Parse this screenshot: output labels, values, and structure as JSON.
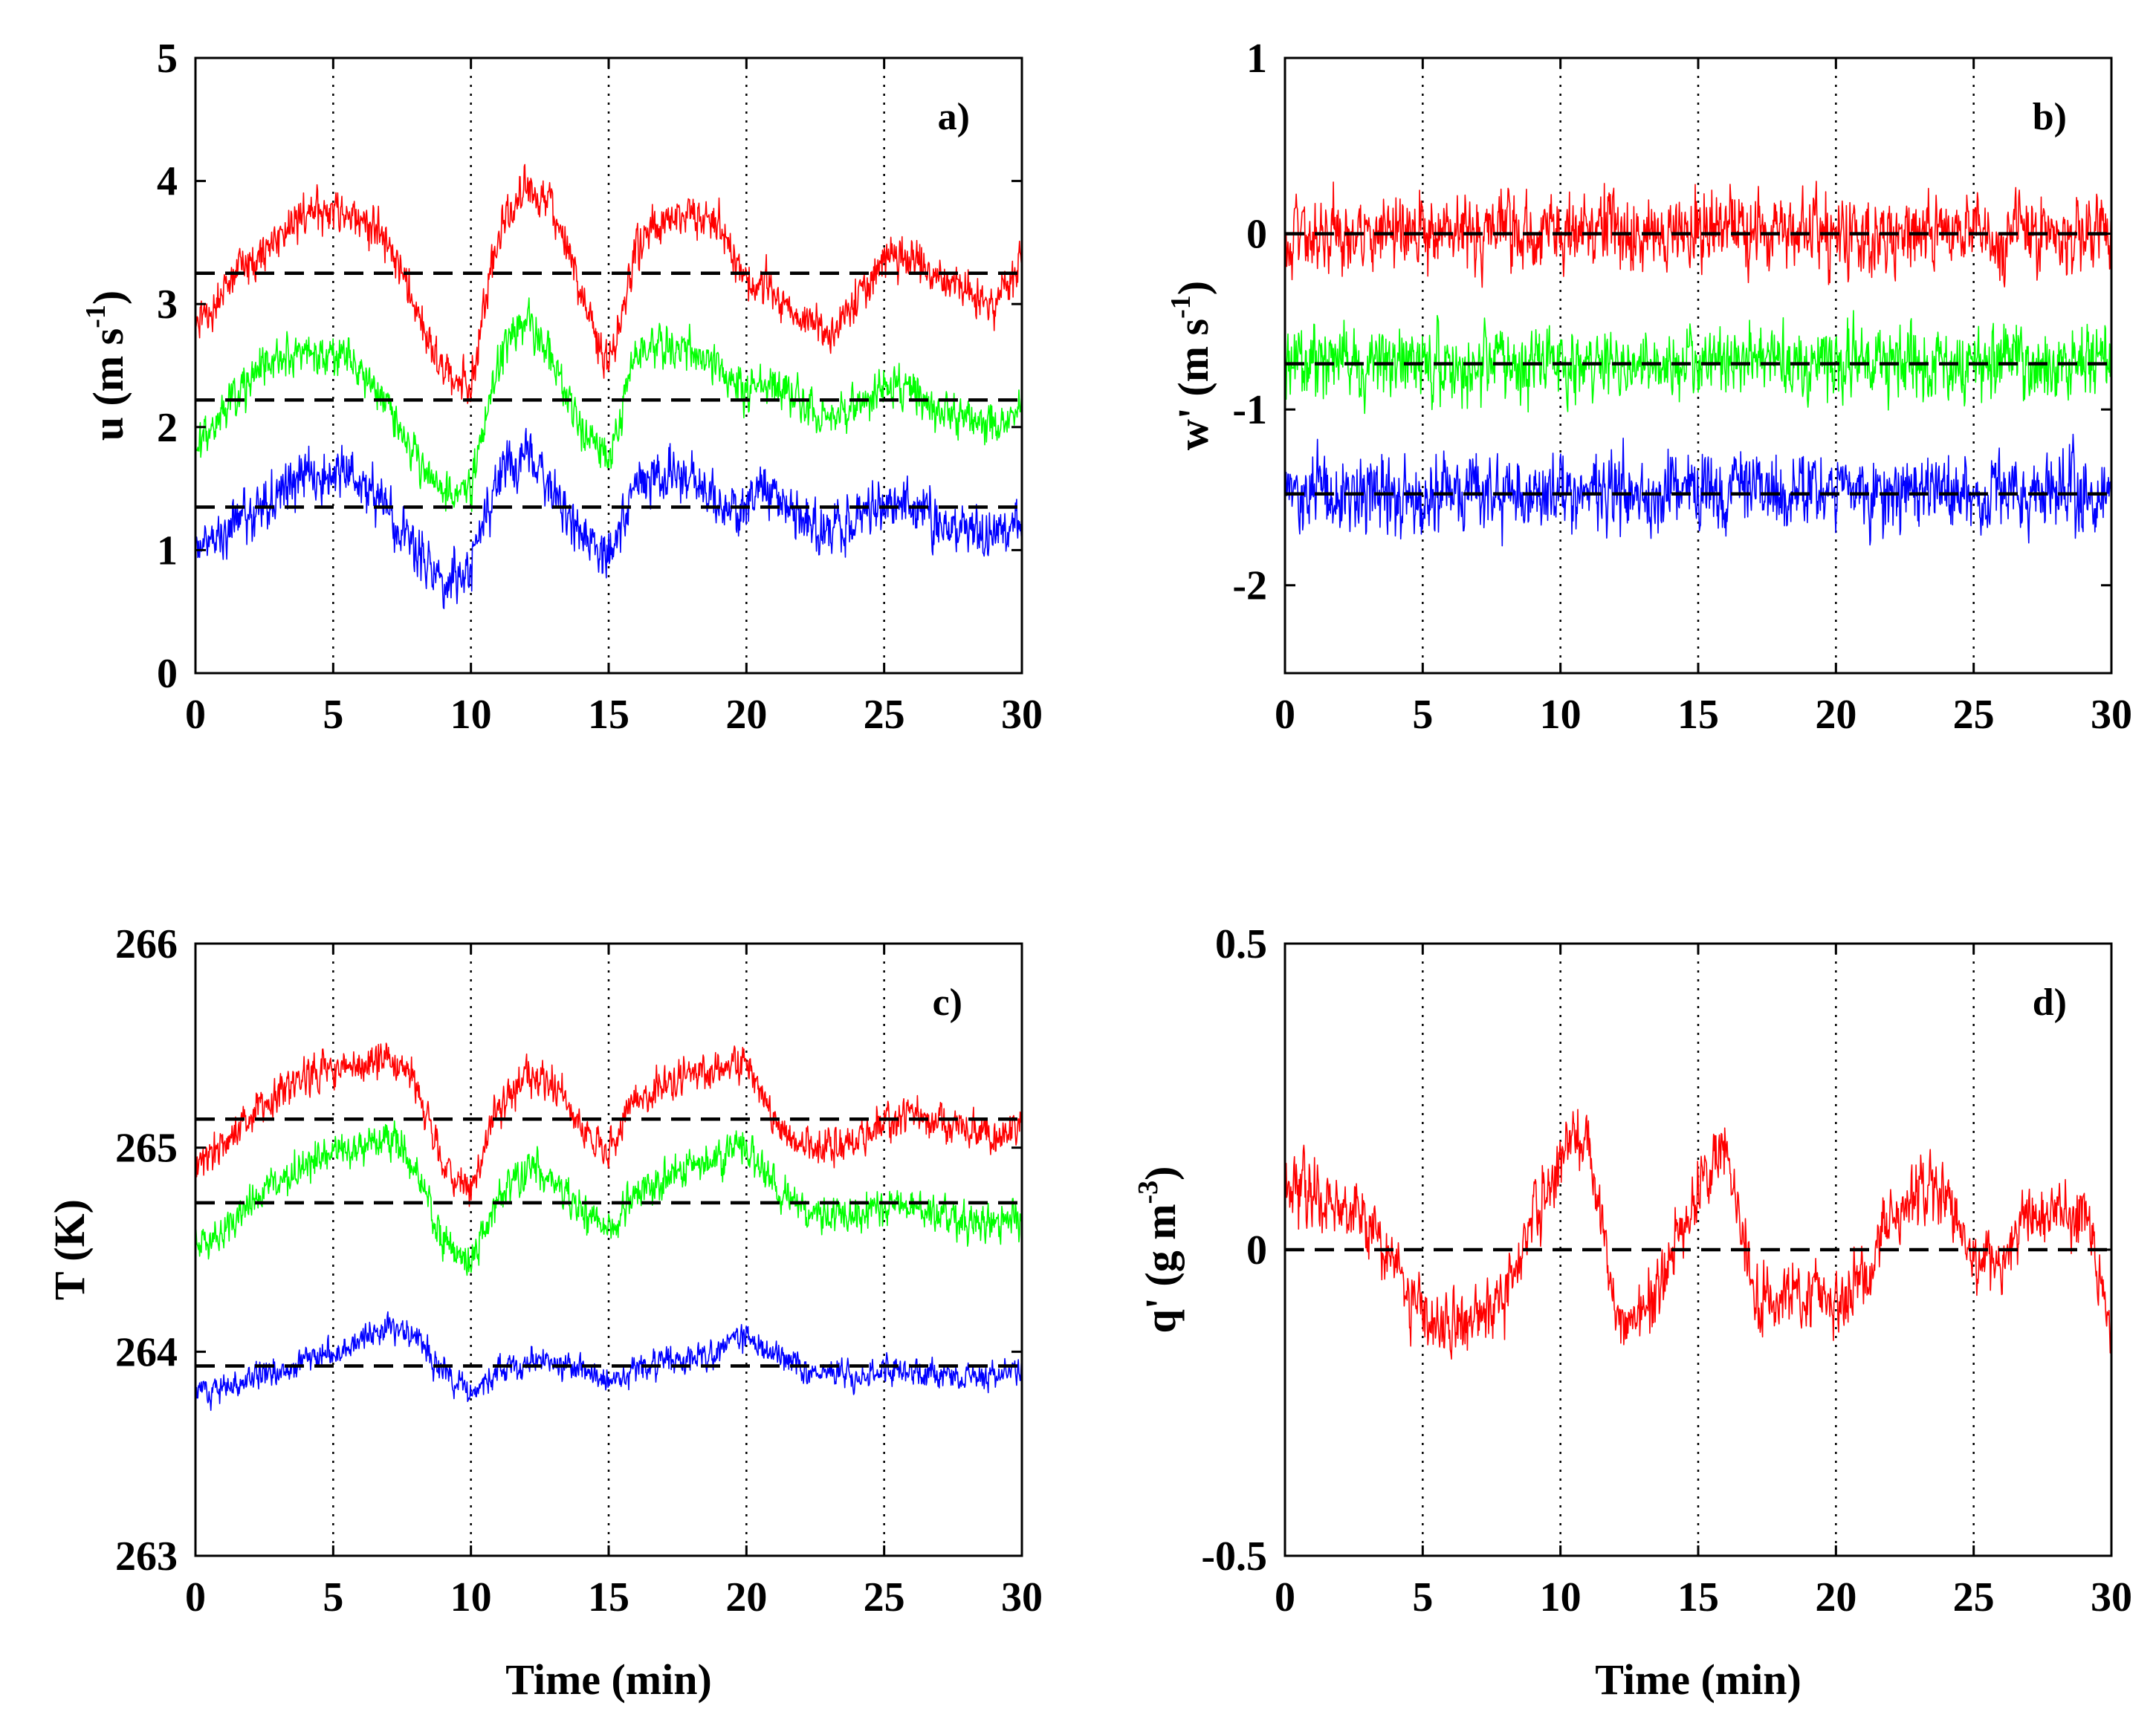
{
  "chart_data": [
    {
      "type": "line",
      "panel_label": "a)",
      "title": "",
      "xlabel": "",
      "ylabel": "u (m s",
      "ylabel_sup": "-1",
      "ylabel_end": ")",
      "xlim": [
        0,
        30
      ],
      "ylim": [
        0,
        5
      ],
      "xticks": [
        "0",
        "5",
        "10",
        "15",
        "20",
        "25",
        "30"
      ],
      "yticks": [
        "0",
        "1",
        "2",
        "3",
        "4",
        "5"
      ],
      "grid": "x-dotted",
      "mean_lines": [
        3.25,
        2.22,
        1.35
      ],
      "series": [
        {
          "name": "red",
          "color": "#ff0000",
          "noise": 0.13,
          "x": [
            0,
            1,
            2,
            3,
            4,
            5,
            6,
            7,
            8,
            9,
            10,
            11,
            12,
            13,
            14,
            15,
            16,
            17,
            18,
            19,
            20,
            21,
            22,
            23,
            24,
            25,
            26,
            27,
            28,
            29,
            30
          ],
          "values": [
            2.8,
            3.1,
            3.35,
            3.55,
            3.7,
            3.8,
            3.7,
            3.5,
            2.95,
            2.45,
            2.35,
            3.55,
            3.95,
            3.75,
            3.1,
            2.45,
            3.5,
            3.7,
            3.75,
            3.6,
            3.2,
            3.1,
            2.9,
            2.75,
            3.05,
            3.35,
            3.4,
            3.2,
            3.1,
            2.95,
            3.35
          ]
        },
        {
          "name": "green",
          "color": "#00ff00",
          "noise": 0.13,
          "x": [
            0,
            1,
            2,
            3,
            4,
            5,
            6,
            7,
            8,
            9,
            10,
            11,
            12,
            13,
            14,
            15,
            16,
            17,
            18,
            19,
            20,
            21,
            22,
            23,
            24,
            25,
            26,
            27,
            28,
            29,
            30
          ],
          "values": [
            1.85,
            2.15,
            2.4,
            2.55,
            2.6,
            2.6,
            2.45,
            2.2,
            1.75,
            1.45,
            1.5,
            2.55,
            2.9,
            2.5,
            2.0,
            1.75,
            2.6,
            2.65,
            2.6,
            2.45,
            2.3,
            2.35,
            2.2,
            2.05,
            2.15,
            2.35,
            2.3,
            2.1,
            2.1,
            2.0,
            2.15
          ]
        },
        {
          "name": "blue",
          "color": "#0000ff",
          "noise": 0.16,
          "x": [
            0,
            1,
            2,
            3,
            4,
            5,
            6,
            7,
            8,
            9,
            10,
            11,
            12,
            13,
            14,
            15,
            16,
            17,
            18,
            19,
            20,
            21,
            22,
            23,
            24,
            25,
            26,
            27,
            28,
            29,
            30
          ],
          "values": [
            1.0,
            1.15,
            1.3,
            1.5,
            1.65,
            1.65,
            1.55,
            1.35,
            1.0,
            0.75,
            0.85,
            1.6,
            1.8,
            1.5,
            1.1,
            0.9,
            1.55,
            1.6,
            1.55,
            1.4,
            1.35,
            1.5,
            1.25,
            1.15,
            1.25,
            1.4,
            1.3,
            1.2,
            1.15,
            1.1,
            1.3
          ]
        }
      ]
    },
    {
      "type": "line",
      "panel_label": "b)",
      "title": "",
      "xlabel": "",
      "ylabel": "w' (m s",
      "ylabel_sup": "-1",
      "ylabel_end": ")",
      "xlim": [
        0,
        30
      ],
      "ylim": [
        -2.5,
        1
      ],
      "xticks": [
        "0",
        "5",
        "10",
        "15",
        "20",
        "25",
        "30"
      ],
      "yticks": [
        "-2",
        "-1",
        "0",
        "1"
      ],
      "grid": "x-dotted",
      "mean_lines": [
        0.0,
        -0.74,
        -1.48
      ],
      "series": [
        {
          "name": "red",
          "color": "#ff0000",
          "noise": 0.16,
          "x": [
            0,
            5,
            10,
            15,
            20,
            25,
            30
          ],
          "values": [
            0.0,
            0.0,
            0.02,
            0.0,
            0.0,
            0.0,
            0.02
          ]
        },
        {
          "name": "green",
          "color": "#00ff00",
          "noise": 0.15,
          "x": [
            0,
            5,
            10,
            15,
            20,
            25,
            30
          ],
          "values": [
            -0.74,
            -0.74,
            -0.73,
            -0.74,
            -0.74,
            -0.74,
            -0.74
          ]
        },
        {
          "name": "blue",
          "color": "#0000ff",
          "noise": 0.16,
          "x": [
            0,
            5,
            10,
            15,
            20,
            25,
            30
          ],
          "values": [
            -1.48,
            -1.48,
            -1.47,
            -1.48,
            -1.48,
            -1.48,
            -1.48
          ]
        }
      ]
    },
    {
      "type": "line",
      "panel_label": "c)",
      "title": "",
      "xlabel": "Time (min)",
      "ylabel": "T (K)",
      "ylabel_sup": "",
      "ylabel_end": "",
      "xlim": [
        0,
        30
      ],
      "ylim": [
        263,
        266
      ],
      "xticks": [
        "0",
        "5",
        "10",
        "15",
        "20",
        "25",
        "30"
      ],
      "yticks": [
        "263",
        "264",
        "265",
        "266"
      ],
      "grid": "x-dotted",
      "mean_lines": [
        265.14,
        264.73,
        263.93
      ],
      "series": [
        {
          "name": "red",
          "color": "#ff0000",
          "noise": 0.07,
          "x": [
            0,
            1,
            2,
            3,
            4,
            5,
            6,
            7,
            8,
            9,
            10,
            11,
            12,
            13,
            14,
            15,
            16,
            17,
            18,
            19,
            20,
            21,
            22,
            23,
            24,
            25,
            26,
            27,
            28,
            29,
            30
          ],
          "values": [
            264.9,
            265.0,
            265.15,
            265.25,
            265.35,
            265.4,
            265.42,
            265.45,
            265.3,
            264.9,
            264.78,
            265.2,
            265.35,
            265.3,
            265.1,
            264.98,
            265.25,
            265.3,
            265.35,
            265.38,
            265.42,
            265.15,
            265.0,
            265.0,
            265.05,
            265.12,
            265.15,
            265.12,
            265.08,
            265.05,
            265.1
          ]
        },
        {
          "name": "green",
          "color": "#00ff00",
          "noise": 0.07,
          "x": [
            0,
            1,
            2,
            3,
            4,
            5,
            6,
            7,
            8,
            9,
            10,
            11,
            12,
            13,
            14,
            15,
            16,
            17,
            18,
            19,
            20,
            21,
            22,
            23,
            24,
            25,
            26,
            27,
            28,
            29,
            30
          ],
          "values": [
            264.5,
            264.6,
            264.72,
            264.82,
            264.9,
            264.98,
            265.0,
            265.05,
            264.9,
            264.55,
            264.45,
            264.75,
            264.9,
            264.85,
            264.7,
            264.58,
            264.78,
            264.85,
            264.9,
            264.95,
            265.0,
            264.8,
            264.68,
            264.65,
            264.68,
            264.72,
            264.7,
            264.68,
            264.65,
            264.62,
            264.65
          ]
        },
        {
          "name": "blue",
          "color": "#0000ff",
          "noise": 0.05,
          "x": [
            0,
            1,
            2,
            3,
            4,
            5,
            6,
            7,
            8,
            9,
            10,
            11,
            12,
            13,
            14,
            15,
            16,
            17,
            18,
            19,
            20,
            21,
            22,
            23,
            24,
            25,
            26,
            27,
            28,
            29,
            30
          ],
          "values": [
            263.8,
            263.83,
            263.87,
            263.9,
            263.95,
            264.0,
            264.05,
            264.12,
            264.08,
            263.88,
            263.8,
            263.9,
            263.95,
            263.95,
            263.92,
            263.85,
            263.92,
            263.95,
            263.97,
            264.0,
            264.08,
            263.98,
            263.92,
            263.9,
            263.88,
            263.9,
            263.9,
            263.88,
            263.88,
            263.88,
            263.92
          ]
        }
      ]
    },
    {
      "type": "line",
      "panel_label": "d)",
      "title": "",
      "xlabel": "Time (min)",
      "ylabel": "q' (g m",
      "ylabel_sup": "-3",
      "ylabel_end": ")",
      "xlim": [
        0,
        30
      ],
      "ylim": [
        -0.5,
        0.5
      ],
      "xticks": [
        "0",
        "5",
        "10",
        "15",
        "20",
        "25",
        "30"
      ],
      "yticks": [
        "-0.5",
        "0",
        "0.5"
      ],
      "grid": "x-dotted",
      "mean_lines": [
        0.0
      ],
      "series": [
        {
          "name": "red",
          "color": "#ff0000",
          "noise": 0.04,
          "x": [
            0,
            1,
            2,
            3,
            4,
            5,
            6,
            7,
            8,
            9,
            10,
            11,
            12,
            13,
            14,
            15,
            16,
            17,
            18,
            19,
            20,
            21,
            22,
            23,
            24,
            25,
            26,
            27,
            28,
            29,
            30
          ],
          "values": [
            0.1,
            0.1,
            0.08,
            0.05,
            -0.02,
            -0.1,
            -0.12,
            -0.12,
            -0.08,
            0.05,
            0.15,
            0.18,
            -0.12,
            -0.1,
            -0.02,
            0.1,
            0.18,
            -0.08,
            -0.07,
            -0.06,
            -0.1,
            -0.05,
            0.05,
            0.1,
            0.1,
            -0.03,
            -0.02,
            0.05,
            0.05,
            0.08,
            -0.15
          ]
        }
      ]
    }
  ]
}
